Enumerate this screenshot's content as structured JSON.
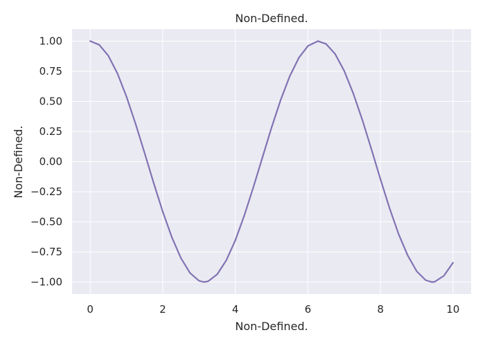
{
  "chart_data": {
    "type": "line",
    "title": "Non-Defined.",
    "xlabel": "Non-Defined.",
    "ylabel": "Non-Defined.",
    "xlim": [
      -0.5,
      10.5
    ],
    "ylim": [
      -1.1,
      1.1
    ],
    "xticks": [
      0,
      2,
      4,
      6,
      8,
      10
    ],
    "yticks": [
      -1.0,
      -0.75,
      -0.5,
      -0.25,
      0.0,
      0.25,
      0.5,
      0.75,
      1.0
    ],
    "xtick_labels": [
      "0",
      "2",
      "4",
      "6",
      "8",
      "10"
    ],
    "ytick_labels": [
      "−1.00",
      "−0.75",
      "−0.50",
      "−0.25",
      "0.00",
      "0.25",
      "0.50",
      "0.75",
      "1.00"
    ],
    "grid": true,
    "series": [
      {
        "color": "#8172b3",
        "x": [
          0,
          0.25,
          0.5,
          0.75,
          1,
          1.25,
          1.5,
          1.75,
          2,
          2.25,
          2.5,
          2.75,
          3,
          3.14,
          3.25,
          3.5,
          3.75,
          4,
          4.25,
          4.5,
          4.75,
          5,
          5.25,
          5.5,
          5.75,
          6,
          6.28,
          6.5,
          6.75,
          7,
          7.25,
          7.5,
          7.75,
          8,
          8.25,
          8.5,
          8.75,
          9,
          9.25,
          9.42,
          9.5,
          9.75,
          10
        ],
        "y": [
          1.0,
          0.969,
          0.878,
          0.732,
          0.54,
          0.315,
          0.071,
          -0.178,
          -0.416,
          -0.628,
          -0.801,
          -0.924,
          -0.99,
          -1.0,
          -0.994,
          -0.936,
          -0.82,
          -0.654,
          -0.446,
          -0.211,
          0.037,
          0.284,
          0.512,
          0.709,
          0.861,
          0.96,
          1.0,
          0.977,
          0.894,
          0.754,
          0.567,
          0.347,
          0.104,
          -0.146,
          -0.386,
          -0.602,
          -0.779,
          -0.911,
          -0.985,
          -1.0,
          -0.997,
          -0.948,
          -0.839
        ]
      }
    ]
  }
}
